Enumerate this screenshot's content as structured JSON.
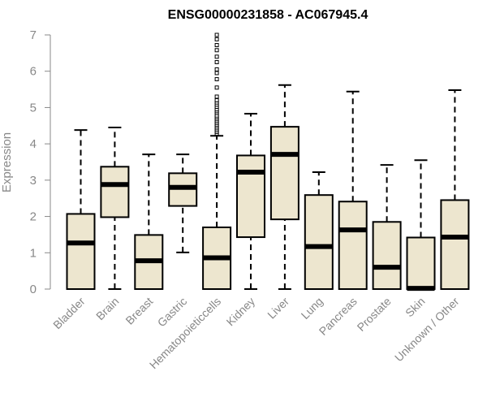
{
  "chart_data": {
    "type": "box",
    "title": "ENSG00000231858 - AC067945.4",
    "ylabel": "Expression",
    "xlabel": "",
    "ylim": [
      0,
      7
    ],
    "yticks": [
      0,
      1,
      2,
      3,
      4,
      5,
      6,
      7
    ],
    "grid": false,
    "colors": {
      "box_fill": "#ede6cf",
      "box_stroke": "#000000",
      "axis": "#888888",
      "tick_text": "#888888"
    },
    "categories": [
      "Bladder",
      "Brain",
      "Breast",
      "Gastric",
      "Hematopoieticcells",
      "Kidney",
      "Liver",
      "Lung",
      "Pancreas",
      "Prostate",
      "Skin",
      "Unknown / Other"
    ],
    "boxes": [
      {
        "label": "Bladder",
        "whisker_low": 0,
        "q1": 0,
        "median": 1.27,
        "q3": 2.07,
        "whisker_high": 4.38,
        "outliers": []
      },
      {
        "label": "Brain",
        "whisker_low": 0,
        "q1": 1.98,
        "median": 2.88,
        "q3": 3.37,
        "whisker_high": 4.45,
        "outliers": []
      },
      {
        "label": "Breast",
        "whisker_low": 0,
        "q1": 0,
        "median": 0.78,
        "q3": 1.49,
        "whisker_high": 3.71,
        "outliers": []
      },
      {
        "label": "Gastric",
        "whisker_low": 1.01,
        "q1": 2.29,
        "median": 2.8,
        "q3": 3.19,
        "whisker_high": 3.71,
        "outliers": []
      },
      {
        "label": "Hematopoieticcells",
        "whisker_low": 0,
        "q1": 0,
        "median": 0.86,
        "q3": 1.7,
        "whisker_high": 4.22,
        "outliers": [
          4.28,
          4.33,
          4.38,
          4.43,
          4.48,
          4.53,
          4.58,
          4.63,
          4.68,
          4.73,
          4.78,
          4.85,
          4.9,
          4.95,
          5.02,
          5.08,
          5.14,
          5.2,
          5.3,
          5.55,
          5.78,
          5.95,
          6.05,
          6.25,
          6.4,
          6.58,
          6.72,
          6.88,
          7.0
        ]
      },
      {
        "label": "Kidney",
        "whisker_low": 0,
        "q1": 1.43,
        "median": 3.22,
        "q3": 3.68,
        "whisker_high": 4.83,
        "outliers": []
      },
      {
        "label": "Liver",
        "whisker_low": 0,
        "q1": 1.92,
        "median": 3.71,
        "q3": 4.47,
        "whisker_high": 5.62,
        "outliers": []
      },
      {
        "label": "Lung",
        "whisker_low": 0,
        "q1": 0,
        "median": 1.17,
        "q3": 2.59,
        "whisker_high": 3.22,
        "outliers": []
      },
      {
        "label": "Pancreas",
        "whisker_low": 0,
        "q1": 0,
        "median": 1.63,
        "q3": 2.41,
        "whisker_high": 5.44,
        "outliers": []
      },
      {
        "label": "Prostate",
        "whisker_low": 0,
        "q1": 0,
        "median": 0.6,
        "q3": 1.85,
        "whisker_high": 3.42,
        "outliers": []
      },
      {
        "label": "Skin",
        "whisker_low": 0,
        "q1": 0,
        "median": 0.02,
        "q3": 1.42,
        "whisker_high": 3.55,
        "outliers": []
      },
      {
        "label": "Unknown / Other",
        "whisker_low": 0,
        "q1": 0,
        "median": 1.43,
        "q3": 2.45,
        "whisker_high": 5.48,
        "outliers": []
      }
    ]
  }
}
